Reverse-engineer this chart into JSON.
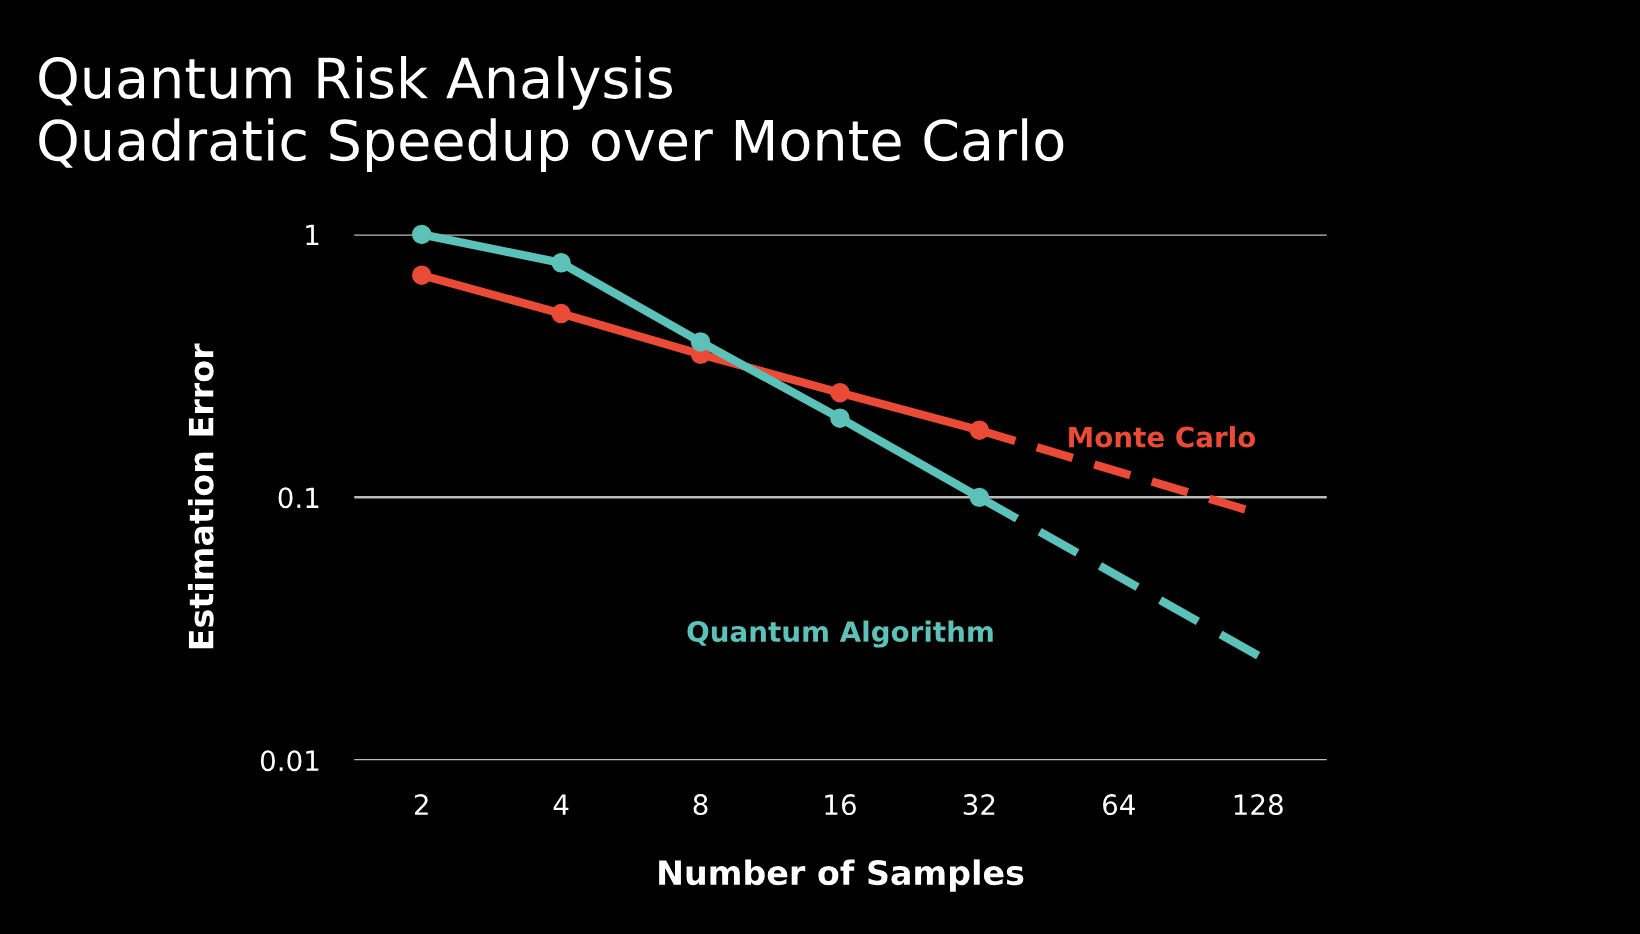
{
  "chart_data": {
    "type": "line",
    "title": "Quantum Risk Analysis\nQuadratic Speedup over Monte Carlo",
    "xlabel": "Number of Samples",
    "ylabel": "Estimation Error",
    "log": "xy",
    "xlim": [
      1.43,
      180
    ],
    "xticks": [
      2,
      4,
      8,
      16,
      32,
      64,
      128
    ],
    "ylim": [
      0.01,
      1
    ],
    "yticks": [
      0.01,
      0.1,
      1
    ],
    "grid": "y",
    "legend": false,
    "series": [
      {
        "name": "Monte Carlo",
        "color": "#ea4b36",
        "x": [
          2,
          4,
          8,
          16,
          32
        ],
        "values": [
          0.7,
          0.5,
          0.35,
          0.25,
          0.18
        ],
        "marker": "circle",
        "line_style": "solid"
      },
      {
        "color": "#ea4b36",
        "x": [
          32,
          120
        ],
        "values": [
          0.18,
          0.09
        ],
        "marker": "none",
        "line_style": "dashed"
      },
      {
        "name": "Quantum Algorithm",
        "color": "#5cc1b8",
        "x": [
          2,
          4,
          8,
          16,
          32
        ],
        "values": [
          1,
          0.78,
          0.39,
          0.2,
          0.1
        ],
        "marker": "circle",
        "line_style": "solid"
      },
      {
        "color": "#5cc1b8",
        "x": [
          32,
          128
        ],
        "values": [
          0.1,
          0.025
        ],
        "marker": "none",
        "line_style": "dashed"
      }
    ]
  }
}
